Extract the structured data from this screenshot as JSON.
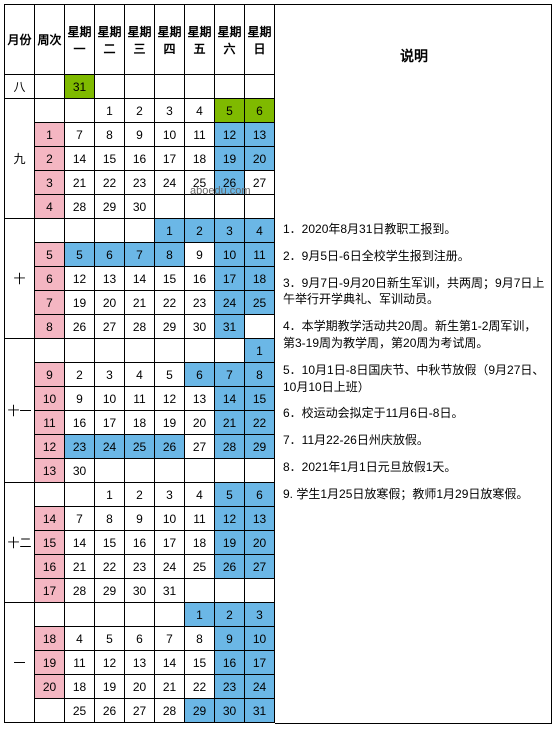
{
  "watermark": "aboedu.com",
  "headers": {
    "month": "月份",
    "week": "周次",
    "days": [
      "星期一",
      "星期二",
      "星期三",
      "星期四",
      "星期五",
      "星期六",
      "星期日"
    ],
    "notes": "说明"
  },
  "months": [
    {
      "label": "八",
      "rowspan": 1
    },
    {
      "label": "九",
      "rowspan": 5
    },
    {
      "label": "十",
      "rowspan": 4
    },
    {
      "label": "十一",
      "rowspan": 5
    },
    {
      "label": "十二",
      "rowspan": 4
    },
    {
      "label": "一",
      "rowspan": 5
    }
  ],
  "rows": [
    {
      "month": "八",
      "week": "",
      "days": [
        [
          "31",
          "green"
        ],
        [
          "",
          ""
        ],
        [
          "",
          ""
        ],
        [
          "",
          ""
        ],
        [
          "",
          ""
        ],
        [
          "",
          ""
        ],
        [
          "",
          ""
        ]
      ]
    },
    {
      "month": "九",
      "week": "",
      "days": [
        [
          "",
          ""
        ],
        [
          "1",
          ""
        ],
        [
          "2",
          ""
        ],
        [
          "3",
          ""
        ],
        [
          "4",
          ""
        ],
        [
          "5",
          "green"
        ],
        [
          "6",
          "green"
        ]
      ]
    },
    {
      "month": "",
      "week": "1",
      "weekcls": "pink",
      "days": [
        [
          "7",
          ""
        ],
        [
          "8",
          ""
        ],
        [
          "9",
          ""
        ],
        [
          "10",
          ""
        ],
        [
          "11",
          ""
        ],
        [
          "12",
          "blue"
        ],
        [
          "13",
          "blue"
        ]
      ]
    },
    {
      "month": "",
      "week": "2",
      "weekcls": "pink",
      "days": [
        [
          "14",
          ""
        ],
        [
          "15",
          ""
        ],
        [
          "16",
          ""
        ],
        [
          "17",
          ""
        ],
        [
          "18",
          ""
        ],
        [
          "19",
          "blue"
        ],
        [
          "20",
          "blue"
        ]
      ]
    },
    {
      "month": "",
      "week": "3",
      "weekcls": "pink",
      "days": [
        [
          "21",
          ""
        ],
        [
          "22",
          ""
        ],
        [
          "23",
          ""
        ],
        [
          "24",
          ""
        ],
        [
          "25",
          ""
        ],
        [
          "26",
          "blue"
        ],
        [
          "27",
          ""
        ]
      ]
    },
    {
      "month": "",
      "week": "4",
      "weekcls": "pink",
      "days": [
        [
          "28",
          ""
        ],
        [
          "29",
          ""
        ],
        [
          "30",
          ""
        ],
        [
          "",
          ""
        ],
        [
          "",
          ""
        ],
        [
          "",
          ""
        ],
        [
          "",
          ""
        ]
      ]
    },
    {
      "month": "十",
      "week": "",
      "days": [
        [
          "",
          ""
        ],
        [
          "",
          ""
        ],
        [
          "",
          ""
        ],
        [
          "1",
          "blue"
        ],
        [
          "2",
          "blue"
        ],
        [
          "3",
          "blue"
        ],
        [
          "4",
          "blue"
        ]
      ]
    },
    {
      "month": "",
      "week": "5",
      "weekcls": "pink",
      "days": [
        [
          "5",
          "blue"
        ],
        [
          "6",
          "blue"
        ],
        [
          "7",
          "blue"
        ],
        [
          "8",
          "blue"
        ],
        [
          "9",
          ""
        ],
        [
          "10",
          "blue"
        ],
        [
          "11",
          "blue"
        ]
      ]
    },
    {
      "month": "",
      "week": "6",
      "weekcls": "pink",
      "days": [
        [
          "12",
          ""
        ],
        [
          "13",
          ""
        ],
        [
          "14",
          ""
        ],
        [
          "15",
          ""
        ],
        [
          "16",
          ""
        ],
        [
          "17",
          "blue"
        ],
        [
          "18",
          "blue"
        ]
      ]
    },
    {
      "month": "",
      "week": "7",
      "weekcls": "pink",
      "days": [
        [
          "19",
          ""
        ],
        [
          "20",
          ""
        ],
        [
          "21",
          ""
        ],
        [
          "22",
          ""
        ],
        [
          "23",
          ""
        ],
        [
          "24",
          "blue"
        ],
        [
          "25",
          "blue"
        ]
      ]
    },
    {
      "month": "",
      "week": "8",
      "weekcls": "pink",
      "days": [
        [
          "26",
          ""
        ],
        [
          "27",
          ""
        ],
        [
          "28",
          ""
        ],
        [
          "29",
          ""
        ],
        [
          "30",
          ""
        ],
        [
          "31",
          "blue"
        ],
        [
          "",
          ""
        ]
      ]
    },
    {
      "month": "十一",
      "week": "",
      "days": [
        [
          "",
          ""
        ],
        [
          "",
          ""
        ],
        [
          "",
          ""
        ],
        [
          "",
          ""
        ],
        [
          "",
          ""
        ],
        [
          "",
          ""
        ],
        [
          "1",
          "blue"
        ]
      ]
    },
    {
      "month": "",
      "week": "9",
      "weekcls": "pink",
      "days": [
        [
          "2",
          ""
        ],
        [
          "3",
          ""
        ],
        [
          "4",
          ""
        ],
        [
          "5",
          ""
        ],
        [
          "6",
          "blue"
        ],
        [
          "7",
          "blue"
        ],
        [
          "8",
          "blue"
        ]
      ]
    },
    {
      "month": "",
      "week": "10",
      "weekcls": "pink",
      "days": [
        [
          "9",
          ""
        ],
        [
          "10",
          ""
        ],
        [
          "11",
          ""
        ],
        [
          "12",
          ""
        ],
        [
          "13",
          ""
        ],
        [
          "14",
          "blue"
        ],
        [
          "15",
          "blue"
        ]
      ]
    },
    {
      "month": "",
      "week": "11",
      "weekcls": "pink",
      "days": [
        [
          "16",
          ""
        ],
        [
          "17",
          ""
        ],
        [
          "18",
          ""
        ],
        [
          "19",
          ""
        ],
        [
          "20",
          ""
        ],
        [
          "21",
          "blue"
        ],
        [
          "22",
          "blue"
        ]
      ]
    },
    {
      "month": "",
      "week": "12",
      "weekcls": "pink",
      "days": [
        [
          "23",
          "blue"
        ],
        [
          "24",
          "blue"
        ],
        [
          "25",
          "blue"
        ],
        [
          "26",
          "blue"
        ],
        [
          "27",
          ""
        ],
        [
          "28",
          "blue"
        ],
        [
          "29",
          "blue"
        ]
      ]
    },
    {
      "month": "",
      "week": "13",
      "weekcls": "pink",
      "days": [
        [
          "30",
          ""
        ],
        [
          "",
          ""
        ],
        [
          "",
          ""
        ],
        [
          "",
          ""
        ],
        [
          "",
          ""
        ],
        [
          "",
          ""
        ],
        [
          "",
          ""
        ]
      ]
    },
    {
      "month": "十二",
      "week": "",
      "days": [
        [
          "",
          ""
        ],
        [
          "1",
          ""
        ],
        [
          "2",
          ""
        ],
        [
          "3",
          ""
        ],
        [
          "4",
          ""
        ],
        [
          "5",
          "blue"
        ],
        [
          "6",
          "blue"
        ]
      ]
    },
    {
      "month": "",
      "week": "14",
      "weekcls": "pink",
      "days": [
        [
          "7",
          ""
        ],
        [
          "8",
          ""
        ],
        [
          "9",
          ""
        ],
        [
          "10",
          ""
        ],
        [
          "11",
          ""
        ],
        [
          "12",
          "blue"
        ],
        [
          "13",
          "blue"
        ]
      ]
    },
    {
      "month": "",
      "week": "15",
      "weekcls": "pink",
      "days": [
        [
          "14",
          ""
        ],
        [
          "15",
          ""
        ],
        [
          "16",
          ""
        ],
        [
          "17",
          ""
        ],
        [
          "18",
          ""
        ],
        [
          "19",
          "blue"
        ],
        [
          "20",
          "blue"
        ]
      ]
    },
    {
      "month": "",
      "week": "16",
      "weekcls": "pink",
      "days": [
        [
          "21",
          ""
        ],
        [
          "22",
          ""
        ],
        [
          "23",
          ""
        ],
        [
          "24",
          ""
        ],
        [
          "25",
          ""
        ],
        [
          "26",
          "blue"
        ],
        [
          "27",
          "blue"
        ]
      ]
    },
    {
      "month": "",
      "week": "17",
      "weekcls": "pink",
      "days": [
        [
          "28",
          ""
        ],
        [
          "29",
          ""
        ],
        [
          "30",
          ""
        ],
        [
          "31",
          ""
        ],
        [
          "",
          ""
        ],
        [
          "",
          ""
        ],
        [
          "",
          ""
        ]
      ]
    },
    {
      "month": "一",
      "week": "",
      "days": [
        [
          "",
          ""
        ],
        [
          "",
          ""
        ],
        [
          "",
          ""
        ],
        [
          "",
          ""
        ],
        [
          "1",
          "blue"
        ],
        [
          "2",
          "blue"
        ],
        [
          "3",
          "blue"
        ]
      ]
    },
    {
      "month": "",
      "week": "18",
      "weekcls": "pink",
      "days": [
        [
          "4",
          ""
        ],
        [
          "5",
          ""
        ],
        [
          "6",
          ""
        ],
        [
          "7",
          ""
        ],
        [
          "8",
          ""
        ],
        [
          "9",
          "blue"
        ],
        [
          "10",
          "blue"
        ]
      ]
    },
    {
      "month": "",
      "week": "19",
      "weekcls": "pink",
      "days": [
        [
          "11",
          ""
        ],
        [
          "12",
          ""
        ],
        [
          "13",
          ""
        ],
        [
          "14",
          ""
        ],
        [
          "15",
          ""
        ],
        [
          "16",
          "blue"
        ],
        [
          "17",
          "blue"
        ]
      ]
    },
    {
      "month": "",
      "week": "20",
      "weekcls": "pink",
      "days": [
        [
          "18",
          ""
        ],
        [
          "19",
          ""
        ],
        [
          "20",
          ""
        ],
        [
          "21",
          ""
        ],
        [
          "22",
          ""
        ],
        [
          "23",
          "blue"
        ],
        [
          "24",
          "blue"
        ]
      ]
    },
    {
      "month": "",
      "week": "",
      "days": [
        [
          "25",
          ""
        ],
        [
          "26",
          ""
        ],
        [
          "27",
          ""
        ],
        [
          "28",
          ""
        ],
        [
          "29",
          "blue"
        ],
        [
          "30",
          "blue"
        ],
        [
          "31",
          "blue"
        ]
      ]
    }
  ],
  "notes": [
    "1．2020年8月31日教职工报到。",
    "2．9月5日-6日全校学生报到注册。",
    "3．9月7日-9月20日新生军训，共两周；9月7日上午举行开学典礼、军训动员。",
    "4．本学期教学活动共20周。新生第1-2周军训，第3-19周为教学周，第20周为考试周。",
    "5．10月1日-8日国庆节、中秋节放假（9月27日、10月10日上班）",
    "6．校运动会拟定于11月6日-8日。",
    "7．11月22-26日州庆放假。",
    "8．2021年1月1日元旦放假1天。",
    "9. 学生1月25日放寒假；教师1月29日放寒假。"
  ]
}
